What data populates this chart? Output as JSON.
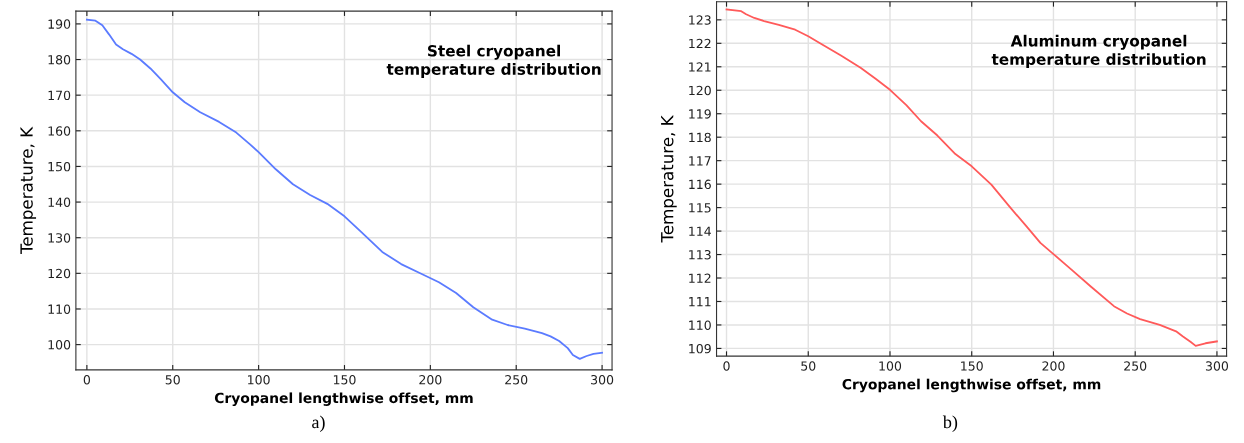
{
  "chart_data": [
    {
      "type": "line",
      "title": "Steel cryopanel\ntemperature distribution",
      "xlabel": "Cryopanel lengthwise offset, mm",
      "ylabel": "Temperature, K",
      "annotations": [
        "a)"
      ],
      "xlim": [
        -6.4,
        305.8
      ],
      "xticks": [
        0,
        50,
        100,
        150,
        200,
        250,
        300
      ],
      "ylim": [
        92.9,
        193.6
      ],
      "yticks": [
        100,
        110,
        120,
        130,
        140,
        150,
        160,
        170,
        180,
        190
      ],
      "grid": true,
      "marker": "none",
      "line_style": "solid",
      "series": [
        {
          "color": "#5b7bff",
          "x": [
            0,
            5,
            9,
            13,
            17,
            21,
            26,
            31,
            37,
            43,
            50,
            57,
            66,
            77,
            87,
            95,
            100,
            110,
            120,
            130,
            140,
            150,
            160,
            172,
            183,
            195,
            205,
            215,
            225,
            236,
            245,
            255,
            265,
            270,
            275,
            280,
            283,
            287,
            291,
            295,
            300
          ],
          "values": [
            191.2,
            190.9,
            189.6,
            187,
            184.2,
            182.9,
            181.6,
            180,
            177.5,
            174.5,
            170.8,
            168,
            165.2,
            162.5,
            159.5,
            156.2,
            154,
            149.2,
            145,
            142,
            139.5,
            136,
            131.5,
            126,
            122.6,
            119.8,
            117.5,
            114.5,
            110.5,
            107,
            105.5,
            104.5,
            103.2,
            102.3,
            101,
            99,
            97.1,
            96,
            96.8,
            97.4,
            97.7
          ]
        }
      ]
    },
    {
      "type": "line",
      "title": "Aluminum cryopanel\ntemperature distribution",
      "xlabel": "Cryopanel lengthwise offset, mm",
      "ylabel": "Temperature, K",
      "annotations": [
        "b)"
      ],
      "xlim": [
        -6.1,
        305.9
      ],
      "xticks": [
        0,
        50,
        100,
        150,
        200,
        250,
        300
      ],
      "ylim": [
        108.67,
        123.77
      ],
      "yticks": [
        109,
        110,
        111,
        112,
        113,
        114,
        115,
        116,
        117,
        118,
        119,
        120,
        121,
        122,
        123
      ],
      "grid": true,
      "marker": "none",
      "line_style": "solid",
      "series": [
        {
          "color": "#ff5a5a",
          "x": [
            0,
            9,
            12,
            17,
            23,
            32,
            42,
            50,
            58,
            70,
            82,
            91,
            100,
            110,
            119,
            129,
            140,
            150,
            162,
            173,
            183,
            192,
            200,
            211,
            223,
            237,
            245,
            253,
            265,
            275,
            279,
            284,
            287,
            293,
            300
          ],
          "values": [
            123.44,
            123.37,
            123.24,
            123.08,
            122.95,
            122.79,
            122.58,
            122.3,
            121.97,
            121.48,
            120.96,
            120.5,
            120.02,
            119.37,
            118.68,
            118.07,
            117.28,
            116.76,
            115.98,
            115.05,
            114.24,
            113.5,
            113.02,
            112.36,
            111.63,
            110.8,
            110.49,
            110.25,
            110.0,
            109.73,
            109.52,
            109.27,
            109.11,
            109.22,
            109.3
          ]
        }
      ]
    }
  ]
}
